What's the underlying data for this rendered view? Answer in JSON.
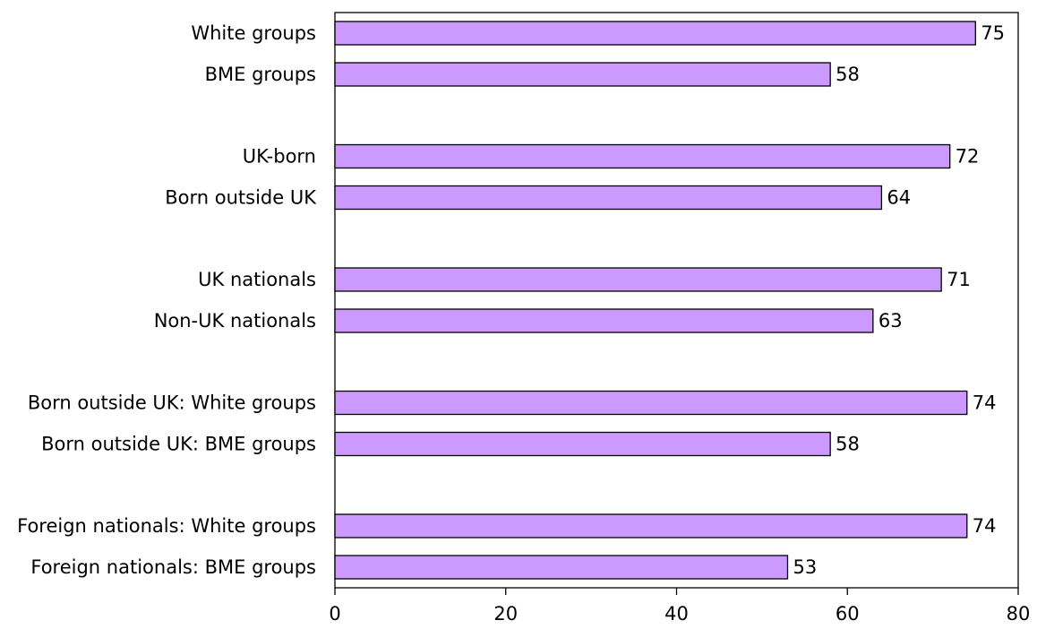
{
  "chart_data": {
    "type": "bar",
    "orientation": "horizontal",
    "title": "",
    "xlabel": "",
    "ylabel": "",
    "categories": [
      "White groups",
      "BME groups",
      "UK-born",
      "Born outside UK",
      "UK nationals",
      "Non-UK nationals",
      "Born outside UK: White groups",
      "Born outside UK: BME groups",
      "Foreign nationals: White groups",
      "Foreign nationals: BME groups"
    ],
    "values": [
      75,
      58,
      72,
      64,
      71,
      63,
      74,
      58,
      74,
      53
    ],
    "data_labels": [
      "75",
      "58",
      "72",
      "64",
      "71",
      "63",
      "74",
      "58",
      "74",
      "53"
    ],
    "xlim": [
      0,
      80
    ],
    "xticks": [
      0,
      20,
      40,
      60,
      80
    ],
    "xtick_labels": [
      "0",
      "20",
      "40",
      "60",
      "80"
    ],
    "grid": false,
    "legend": "none",
    "bar_color": "#cc99ff",
    "bar_edge_color": "#000000"
  }
}
